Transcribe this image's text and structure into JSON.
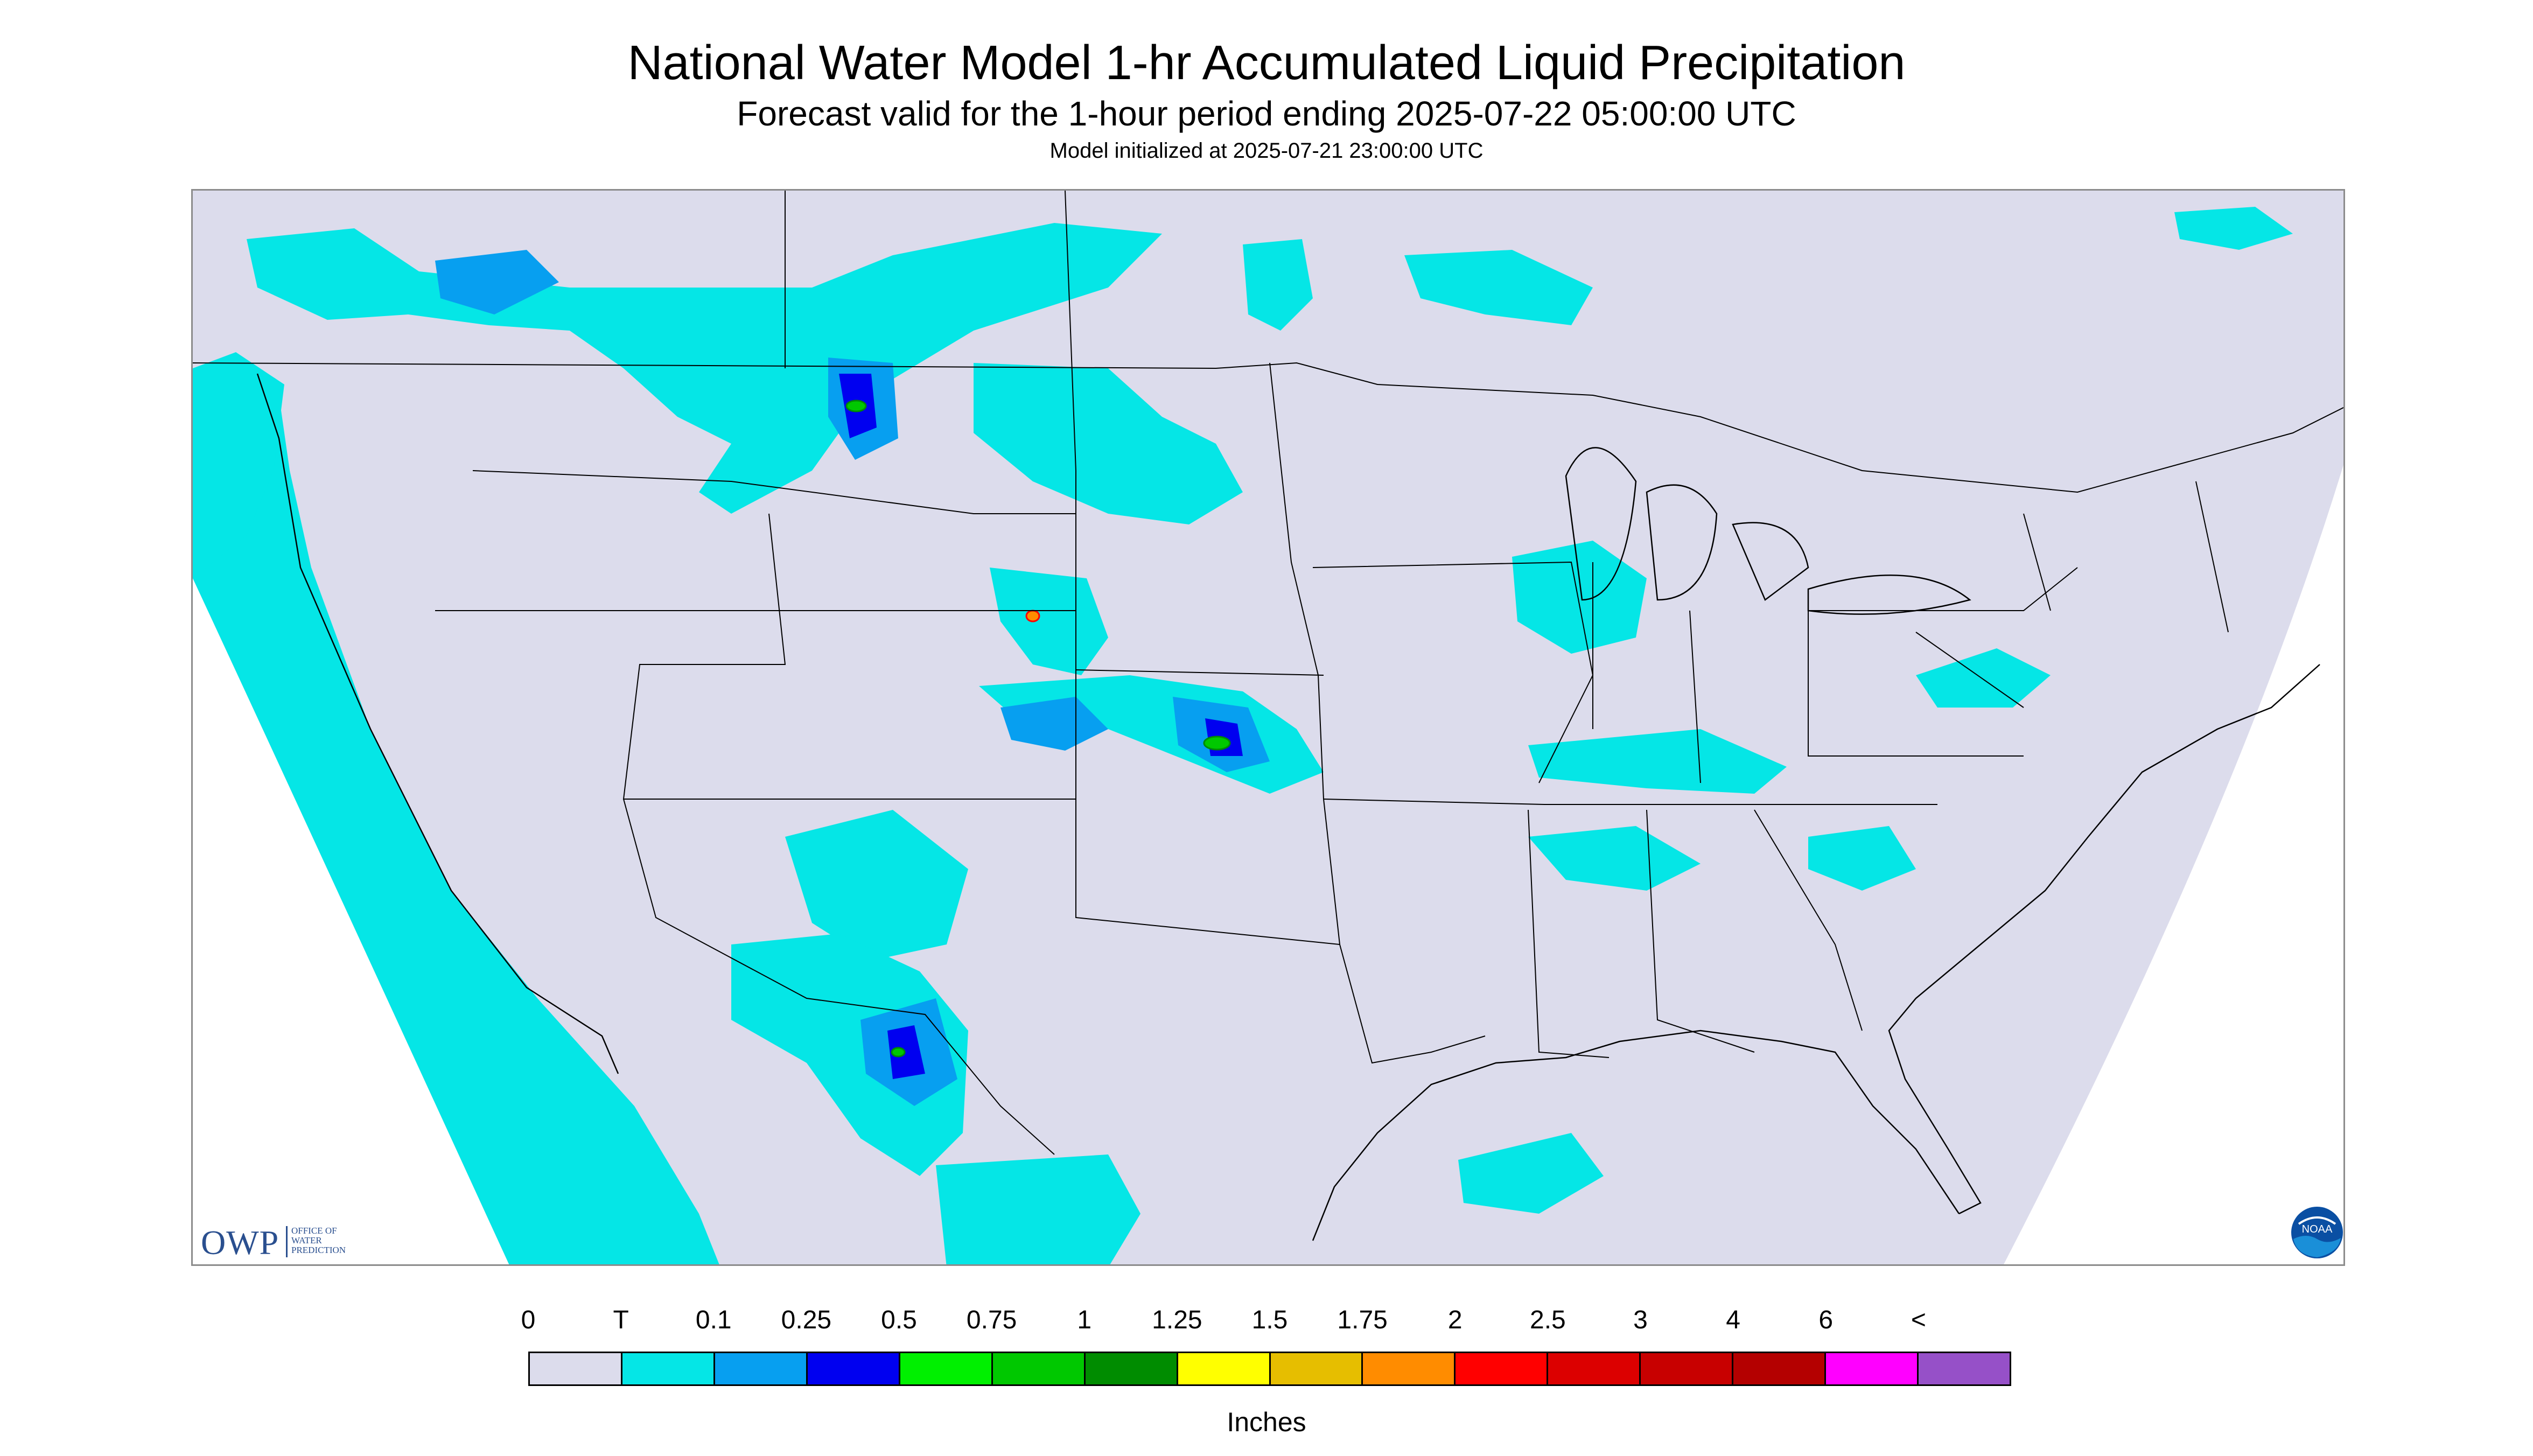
{
  "header": {
    "title": "National Water Model 1-hr Accumulated Liquid Precipitation",
    "subtitle": "Forecast valid for the 1-hour period ending 2025-07-22 05:00:00 UTC",
    "init_line": "Model initialized at 2025-07-21 23:00:00 UTC"
  },
  "logos": {
    "owp": {
      "mark": "OWP",
      "line1": "OFFICE OF",
      "line2": "WATER",
      "line3": "PREDICTION"
    },
    "noaa": {
      "text": "NOAA"
    }
  },
  "legend": {
    "labels": [
      "0",
      "T",
      "0.1",
      "0.25",
      "0.5",
      "0.75",
      "1",
      "1.25",
      "1.5",
      "1.75",
      "2",
      "2.5",
      "3",
      "4",
      "6",
      "<"
    ],
    "colors": [
      "#dcdcec",
      "#05e6e6",
      "#079ff0",
      "#0000f0",
      "#00f000",
      "#00c800",
      "#008c00",
      "#ffff00",
      "#e6be00",
      "#ff8c00",
      "#ff0000",
      "#dc0000",
      "#c80000",
      "#b40000",
      "#ff00ff",
      "#9650c8"
    ],
    "units": "Inches"
  },
  "map": {
    "background_color": "#dcdcec",
    "outside_color": "#ffffff",
    "land_line_color": "#000000"
  }
}
